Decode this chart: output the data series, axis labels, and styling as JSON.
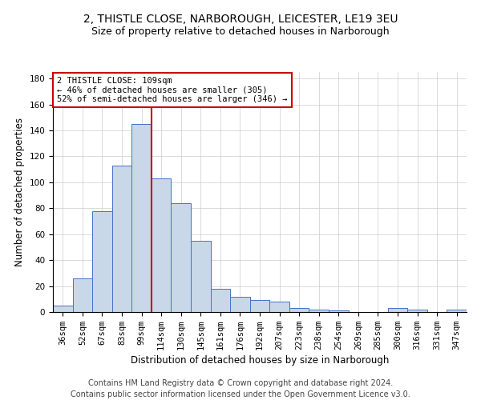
{
  "title_line1": "2, THISTLE CLOSE, NARBOROUGH, LEICESTER, LE19 3EU",
  "title_line2": "Size of property relative to detached houses in Narborough",
  "xlabel": "Distribution of detached houses by size in Narborough",
  "ylabel": "Number of detached properties",
  "categories": [
    "36sqm",
    "52sqm",
    "67sqm",
    "83sqm",
    "99sqm",
    "114sqm",
    "130sqm",
    "145sqm",
    "161sqm",
    "176sqm",
    "192sqm",
    "207sqm",
    "223sqm",
    "238sqm",
    "254sqm",
    "269sqm",
    "285sqm",
    "300sqm",
    "316sqm",
    "331sqm",
    "347sqm"
  ],
  "values": [
    5,
    26,
    78,
    113,
    145,
    103,
    84,
    55,
    18,
    12,
    9,
    8,
    3,
    2,
    1,
    0,
    0,
    3,
    2,
    0,
    2
  ],
  "bar_color": "#c8d8e8",
  "bar_edge_color": "#4472c4",
  "vline_color": "#cc0000",
  "vline_index": 4.5,
  "annotation_text": "2 THISTLE CLOSE: 109sqm\n← 46% of detached houses are smaller (305)\n52% of semi-detached houses are larger (346) →",
  "annotation_box_color": "#ffffff",
  "annotation_box_edge": "#cc0000",
  "ylim": [
    0,
    185
  ],
  "yticks": [
    0,
    20,
    40,
    60,
    80,
    100,
    120,
    140,
    160,
    180
  ],
  "footer1": "Contains HM Land Registry data © Crown copyright and database right 2024.",
  "footer2": "Contains public sector information licensed under the Open Government Licence v3.0.",
  "title_fontsize": 10,
  "subtitle_fontsize": 9,
  "axis_label_fontsize": 8.5,
  "tick_fontsize": 7.5,
  "footer_fontsize": 7
}
